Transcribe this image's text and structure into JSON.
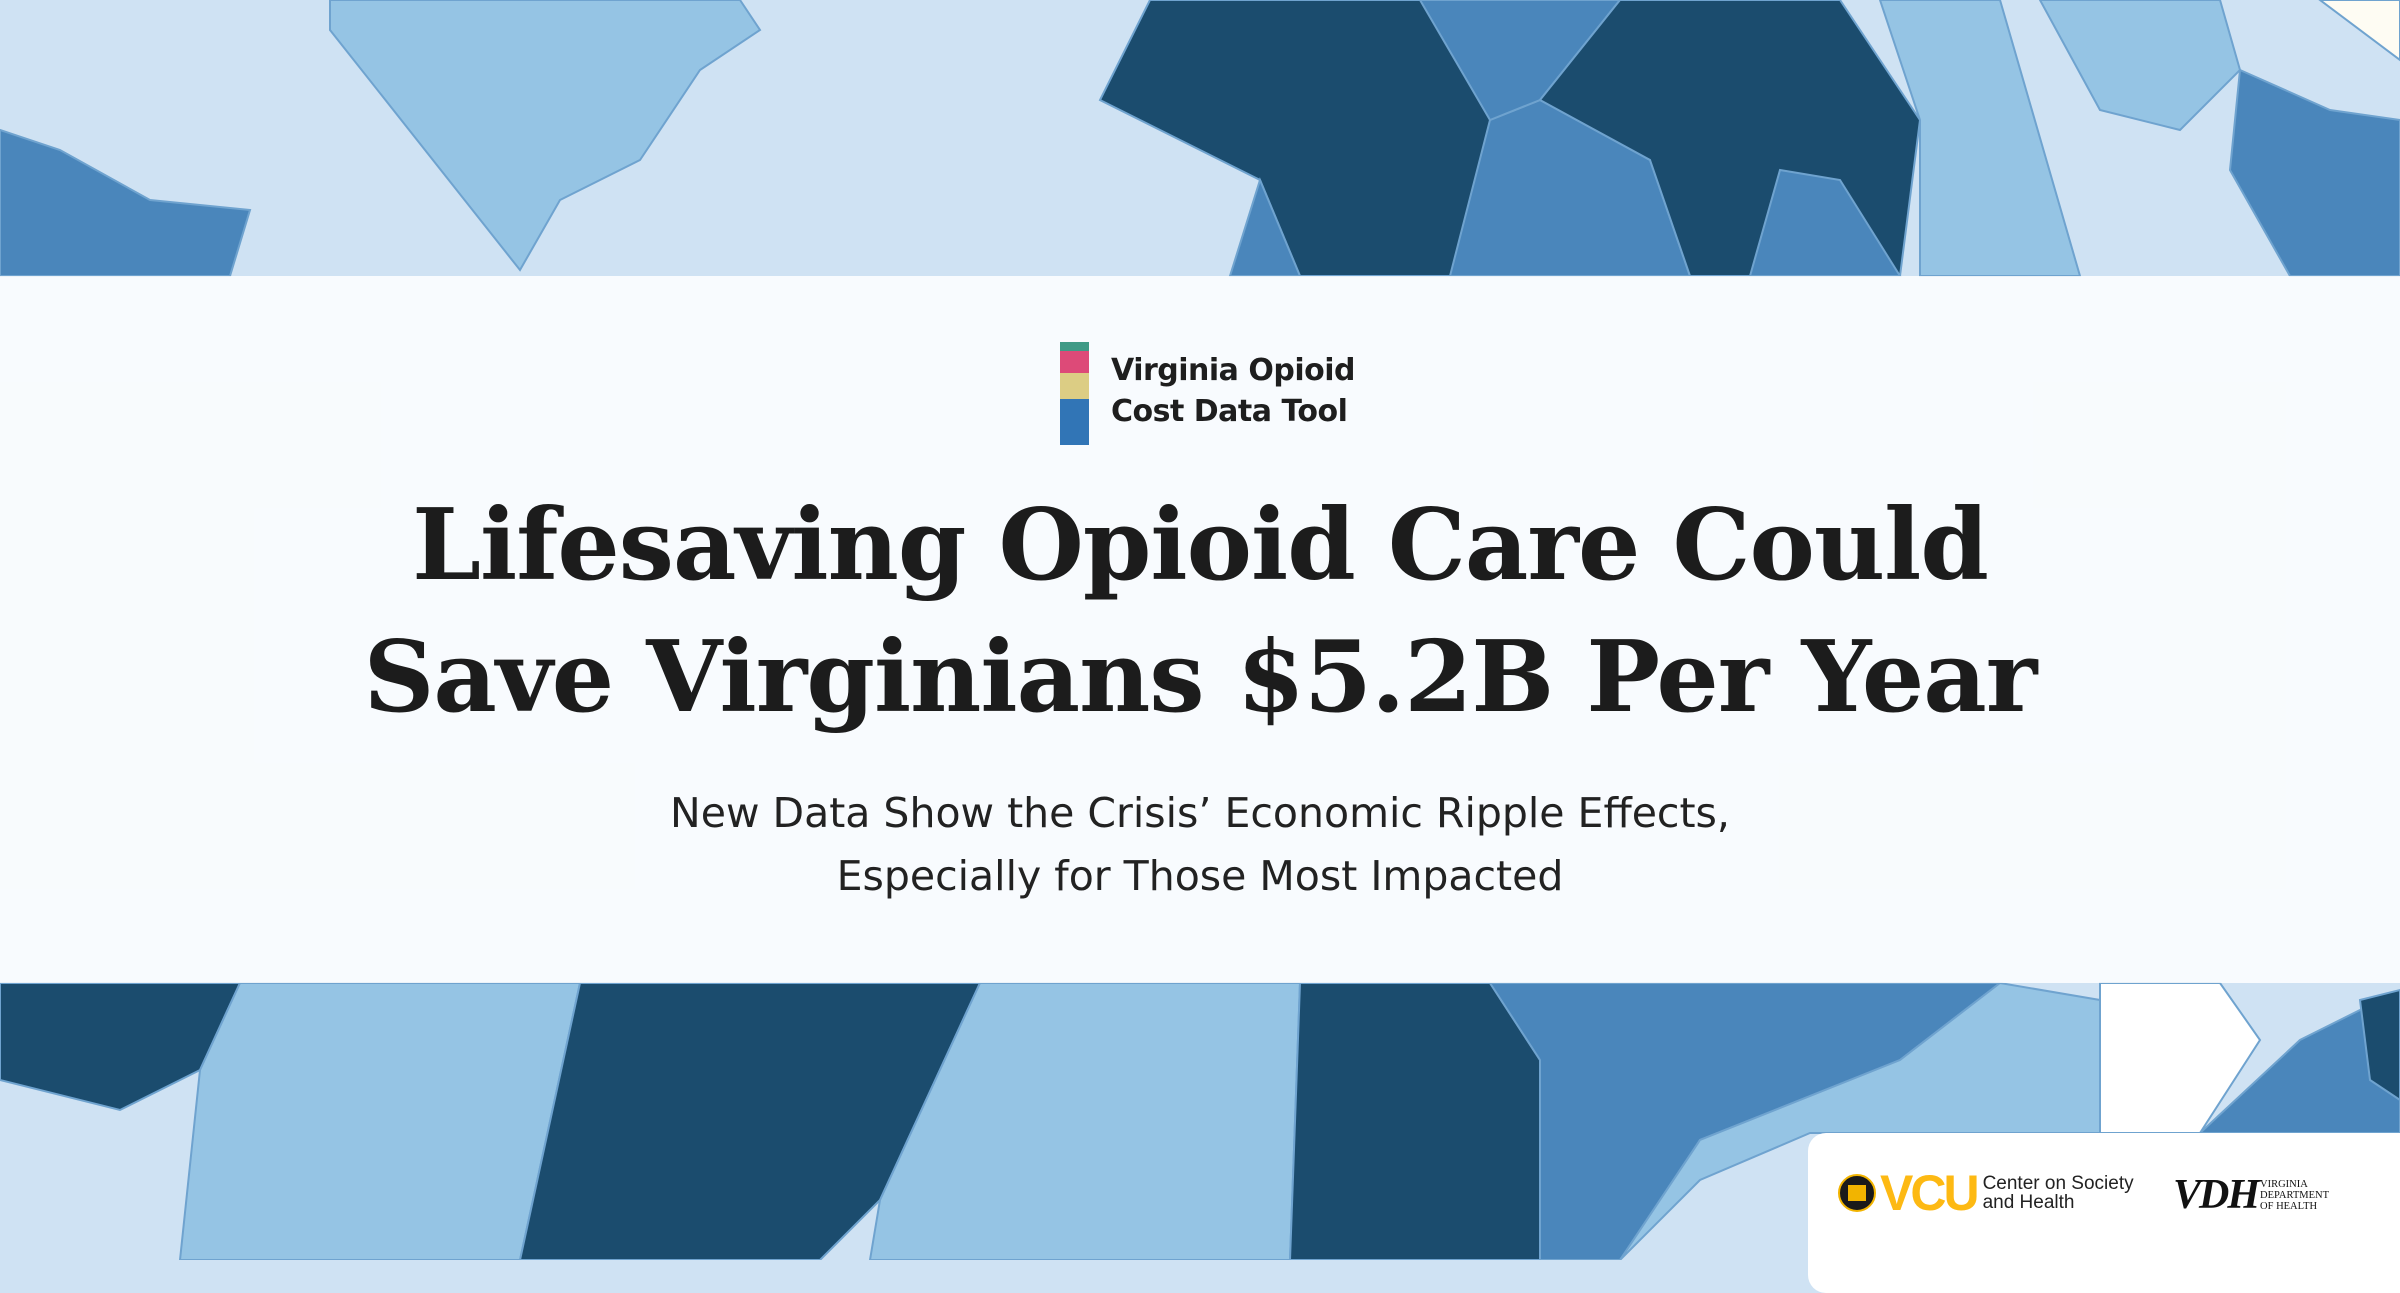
{
  "brand": {
    "line1": "Virginia Opioid",
    "line2": "Cost Data Tool",
    "bar_colors": [
      "#3f9a86",
      "#dd4a78",
      "#dccd84",
      "#3175b6"
    ]
  },
  "headline": {
    "line1": "Lifesaving Opioid Care Could",
    "line2": "Save Virginians $5.2B Per Year"
  },
  "subheadline": {
    "line1": "New Data Show the Crisis’ Economic Ripple Effects,",
    "line2": "Especially for Those Most Impacted"
  },
  "logos": {
    "vcu": {
      "wordmark": "VCU",
      "line1": "Center on Society",
      "line2": "and Health"
    },
    "vdh": {
      "wordmark": "VDH",
      "line1": "VIRGINIA",
      "line2": "DEPARTMENT",
      "line3": "OF HEALTH"
    }
  },
  "map_colors": {
    "light": "#cfe2f3",
    "mid_light": "#95c4e4",
    "mid": "#4a86bb",
    "dark": "#1b4c6e"
  }
}
